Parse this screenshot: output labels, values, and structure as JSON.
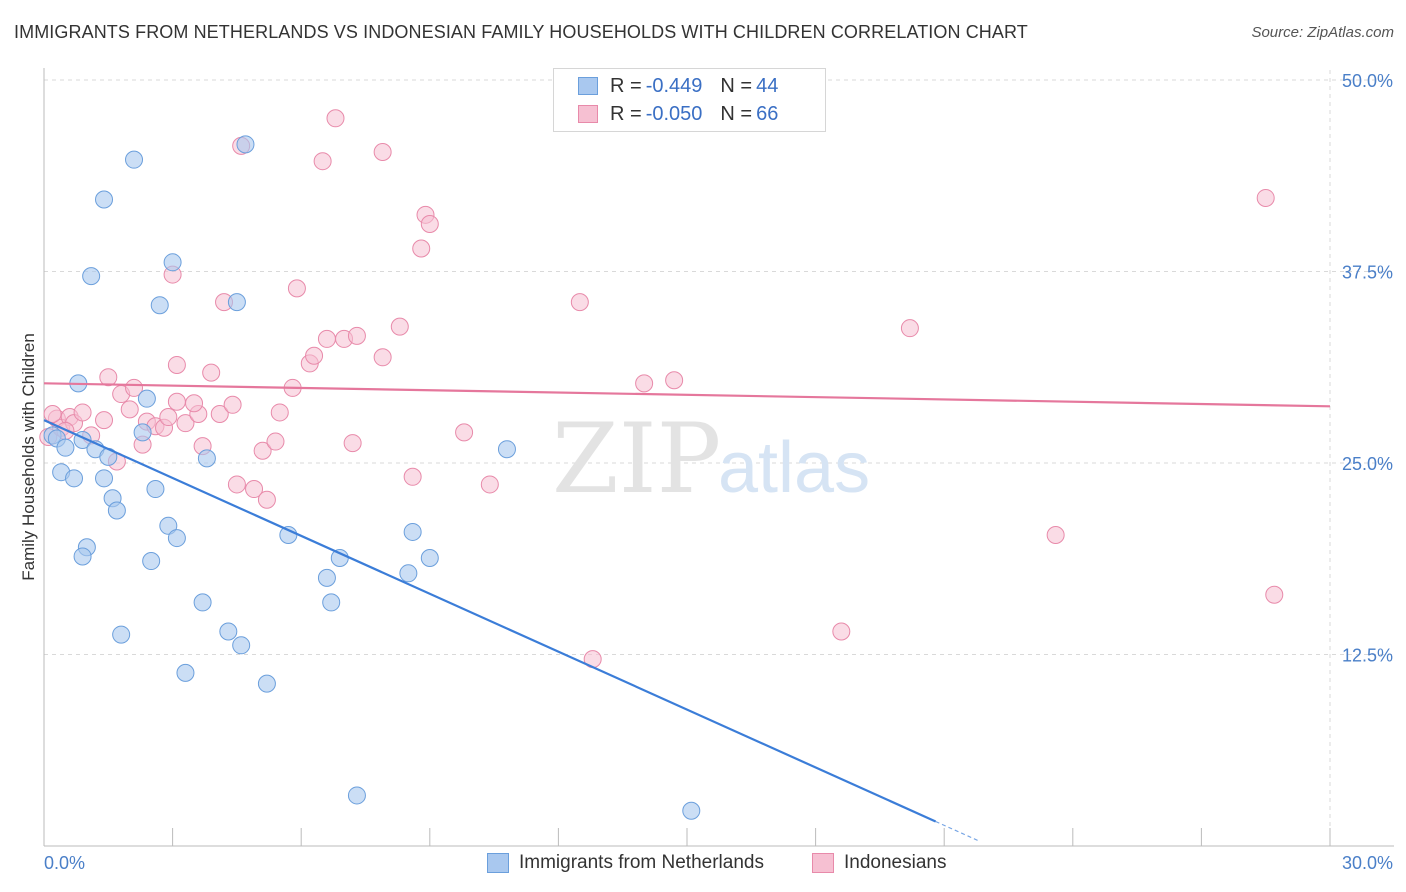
{
  "title": "IMMIGRANTS FROM NETHERLANDS VS INDONESIAN FAMILY HOUSEHOLDS WITH CHILDREN CORRELATION CHART",
  "source": "Source: ZipAtlas.com",
  "watermark": {
    "zip": "ZIP",
    "atlas": "atlas"
  },
  "legend": {
    "rows": [
      {
        "r_label": "R = ",
        "r_value": "-0.449",
        "n_label": "N = ",
        "n_value": "44"
      },
      {
        "r_label": "R = ",
        "r_value": "-0.050",
        "n_label": "N = ",
        "n_value": "66"
      }
    ]
  },
  "colors": {
    "blue_fill": "#a9c8ef",
    "blue_stroke": "#6b9fdc",
    "blue_line": "#3b7dd8",
    "pink_fill": "#f6c0d2",
    "pink_stroke": "#e88aaa",
    "pink_line": "#e5779c",
    "grid": "#d9d9d9",
    "axis_text": "#4a7fc8"
  },
  "chart_data": {
    "type": "scatter",
    "title": "IMMIGRANTS FROM NETHERLANDS VS INDONESIAN FAMILY HOUSEHOLDS WITH CHILDREN CORRELATION CHART",
    "xlabel": "",
    "ylabel": "Family Households with Children",
    "xlim": [
      0,
      30
    ],
    "ylim": [
      0,
      50
    ],
    "x_tick_labels": [
      "0.0%",
      "30.0%"
    ],
    "y_ticks": [
      12.5,
      25.0,
      37.5,
      50.0
    ],
    "y_tick_labels": [
      "12.5%",
      "25.0%",
      "37.5%",
      "50.0%"
    ],
    "grid": true,
    "legend_position": "top-center",
    "series": [
      {
        "name": "Immigrants from Netherlands",
        "color": "#a9c8ef",
        "trend": {
          "x": [
            0.0,
            20.8
          ],
          "y": [
            27.8,
            1.6
          ],
          "dash_to_x": 21.8
        },
        "points": [
          [
            0.2,
            26.8
          ],
          [
            0.3,
            26.6
          ],
          [
            0.8,
            30.2
          ],
          [
            0.9,
            26.5
          ],
          [
            0.4,
            24.4
          ],
          [
            0.7,
            24.0
          ],
          [
            1.2,
            25.9
          ],
          [
            1.5,
            25.4
          ],
          [
            1.4,
            24.0
          ],
          [
            0.5,
            26.0
          ],
          [
            1.0,
            19.5
          ],
          [
            0.9,
            18.9
          ],
          [
            2.1,
            44.8
          ],
          [
            1.4,
            42.2
          ],
          [
            3.0,
            38.1
          ],
          [
            1.1,
            37.2
          ],
          [
            2.7,
            35.3
          ],
          [
            4.5,
            35.5
          ],
          [
            4.7,
            45.8
          ],
          [
            2.4,
            29.2
          ],
          [
            2.3,
            27.0
          ],
          [
            3.8,
            25.3
          ],
          [
            1.6,
            22.7
          ],
          [
            2.6,
            23.3
          ],
          [
            1.7,
            21.9
          ],
          [
            2.9,
            20.9
          ],
          [
            3.1,
            20.1
          ],
          [
            2.5,
            18.6
          ],
          [
            5.7,
            20.3
          ],
          [
            6.6,
            17.5
          ],
          [
            6.7,
            15.9
          ],
          [
            6.9,
            18.8
          ],
          [
            3.7,
            15.9
          ],
          [
            4.3,
            14.0
          ],
          [
            4.6,
            13.1
          ],
          [
            1.8,
            13.8
          ],
          [
            3.3,
            11.3
          ],
          [
            5.2,
            10.6
          ],
          [
            8.6,
            20.5
          ],
          [
            9.0,
            18.8
          ],
          [
            8.5,
            17.8
          ],
          [
            10.8,
            25.9
          ],
          [
            7.3,
            3.3
          ],
          [
            15.1,
            2.3
          ]
        ]
      },
      {
        "name": "Indonesians",
        "color": "#f6c0d2",
        "trend": {
          "x": [
            0.0,
            30.0
          ],
          "y": [
            30.2,
            28.7
          ]
        },
        "points": [
          [
            0.1,
            26.7
          ],
          [
            0.3,
            27.9
          ],
          [
            0.4,
            27.3
          ],
          [
            0.6,
            28.0
          ],
          [
            0.7,
            27.6
          ],
          [
            0.9,
            28.3
          ],
          [
            1.1,
            26.8
          ],
          [
            1.4,
            27.8
          ],
          [
            1.5,
            30.6
          ],
          [
            1.8,
            29.5
          ],
          [
            2.0,
            28.5
          ],
          [
            2.1,
            29.9
          ],
          [
            2.3,
            26.2
          ],
          [
            2.4,
            27.7
          ],
          [
            2.6,
            27.4
          ],
          [
            2.8,
            27.3
          ],
          [
            3.1,
            29.0
          ],
          [
            3.3,
            27.6
          ],
          [
            3.1,
            31.4
          ],
          [
            3.0,
            37.3
          ],
          [
            3.6,
            28.2
          ],
          [
            3.7,
            26.1
          ],
          [
            3.9,
            30.9
          ],
          [
            4.1,
            28.2
          ],
          [
            4.2,
            35.5
          ],
          [
            4.4,
            28.8
          ],
          [
            4.5,
            23.6
          ],
          [
            4.9,
            23.3
          ],
          [
            5.1,
            25.8
          ],
          [
            5.2,
            22.6
          ],
          [
            5.4,
            26.4
          ],
          [
            5.5,
            28.3
          ],
          [
            5.8,
            29.9
          ],
          [
            5.9,
            36.4
          ],
          [
            6.2,
            31.5
          ],
          [
            6.3,
            32.0
          ],
          [
            6.5,
            44.7
          ],
          [
            6.6,
            33.1
          ],
          [
            6.8,
            47.5
          ],
          [
            7.0,
            33.1
          ],
          [
            7.3,
            33.3
          ],
          [
            7.2,
            26.3
          ],
          [
            7.9,
            45.3
          ],
          [
            7.9,
            31.9
          ],
          [
            8.3,
            33.9
          ],
          [
            8.6,
            24.1
          ],
          [
            8.8,
            39.0
          ],
          [
            8.9,
            41.2
          ],
          [
            9.0,
            40.6
          ],
          [
            9.8,
            27.0
          ],
          [
            10.4,
            23.6
          ],
          [
            12.5,
            35.5
          ],
          [
            12.8,
            12.2
          ],
          [
            14.0,
            30.2
          ],
          [
            14.7,
            30.4
          ],
          [
            18.6,
            14.0
          ],
          [
            20.2,
            33.8
          ],
          [
            23.6,
            20.3
          ],
          [
            28.5,
            42.3
          ],
          [
            28.7,
            16.4
          ],
          [
            0.2,
            28.2
          ],
          [
            0.5,
            27.1
          ],
          [
            1.7,
            25.1
          ],
          [
            3.5,
            28.9
          ],
          [
            4.6,
            45.7
          ],
          [
            2.9,
            28.0
          ]
        ]
      }
    ]
  }
}
